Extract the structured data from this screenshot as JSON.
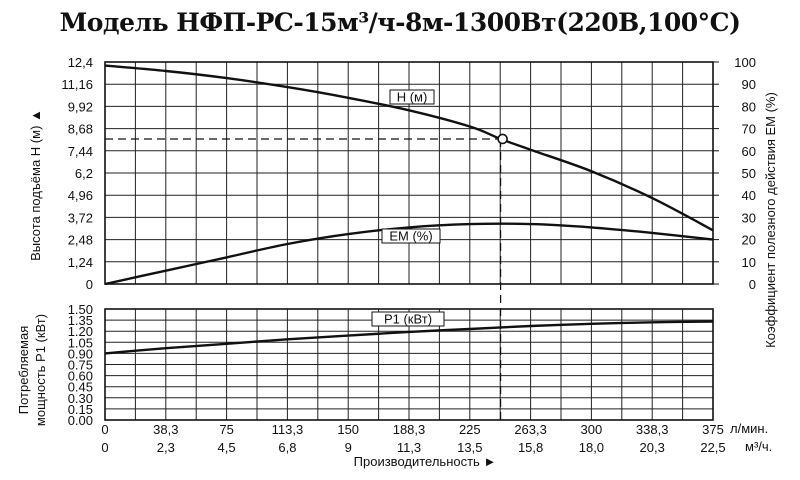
{
  "chart_data": {
    "type": "line",
    "title": "Модель НФП-РС-15м³/ч-8м-1300Вт(220В,100°С)",
    "xlabel": "Производительность ►",
    "x_units_primary": "л/мин.",
    "x_units_secondary": "м³/ч.",
    "x_ticks_primary": [
      "0",
      "38,3",
      "75",
      "113,3",
      "150",
      "188,3",
      "225",
      "263,3",
      "300",
      "338,3",
      "375"
    ],
    "x_ticks_secondary": [
      "0",
      "2,3",
      "4,5",
      "6,8",
      "9",
      "11,3",
      "13,5",
      "15,8",
      "18,0",
      "20,3",
      "22,5"
    ],
    "xlim": [
      0,
      375
    ],
    "head_axis": {
      "label": "Высота подъёма Н (м) ▲",
      "ticks": [
        "0",
        "1,24",
        "2,48",
        "3,72",
        "4,96",
        "6,2",
        "7,44",
        "8,68",
        "9,92",
        "11,16",
        "12,4"
      ],
      "ylim": [
        0,
        12.4
      ]
    },
    "eff_axis": {
      "label": "Коэффициент полезного действия ЕМ (%)",
      "ticks": [
        "0",
        "10",
        "20",
        "30",
        "40",
        "50",
        "60",
        "70",
        "80",
        "90",
        "100"
      ],
      "ylim": [
        0,
        100
      ]
    },
    "power_axis": {
      "label_line1": "Потребляемая",
      "label_line2": "мощность Р1 (кВт)",
      "ticks": [
        "0.00",
        "0.15",
        "0.30",
        "0.45",
        "0.60",
        "0.75",
        "0.90",
        "1.05",
        "1.20",
        "1.35",
        "1.50"
      ],
      "ylim": [
        0,
        1.5
      ]
    },
    "series": [
      {
        "name": "Н (м)",
        "panel": "head",
        "x": [
          0,
          37.5,
          75,
          112.5,
          150,
          187.5,
          225,
          244,
          262.5,
          300,
          337.5,
          375
        ],
        "y": [
          12.2,
          11.9,
          11.5,
          11.0,
          10.4,
          9.7,
          8.8,
          8.1,
          7.5,
          6.3,
          4.8,
          3.0
        ]
      },
      {
        "name": "ЕМ (%)",
        "panel": "eff",
        "x": [
          0,
          37.5,
          75,
          112.5,
          150,
          187.5,
          225,
          262.5,
          300,
          337.5,
          375
        ],
        "y": [
          0,
          6,
          12,
          18,
          22.5,
          25.5,
          27,
          27,
          25.5,
          23,
          20
        ]
      },
      {
        "name": "Р1 (кВт)",
        "panel": "power",
        "x": [
          0,
          37.5,
          75,
          112.5,
          150,
          187.5,
          225,
          262.5,
          300,
          337.5,
          375
        ],
        "y": [
          0.9,
          0.97,
          1.03,
          1.09,
          1.14,
          1.19,
          1.23,
          1.27,
          1.3,
          1.32,
          1.33
        ]
      }
    ],
    "operating_point": {
      "x": 244,
      "y": 8.1
    },
    "grid": true
  }
}
